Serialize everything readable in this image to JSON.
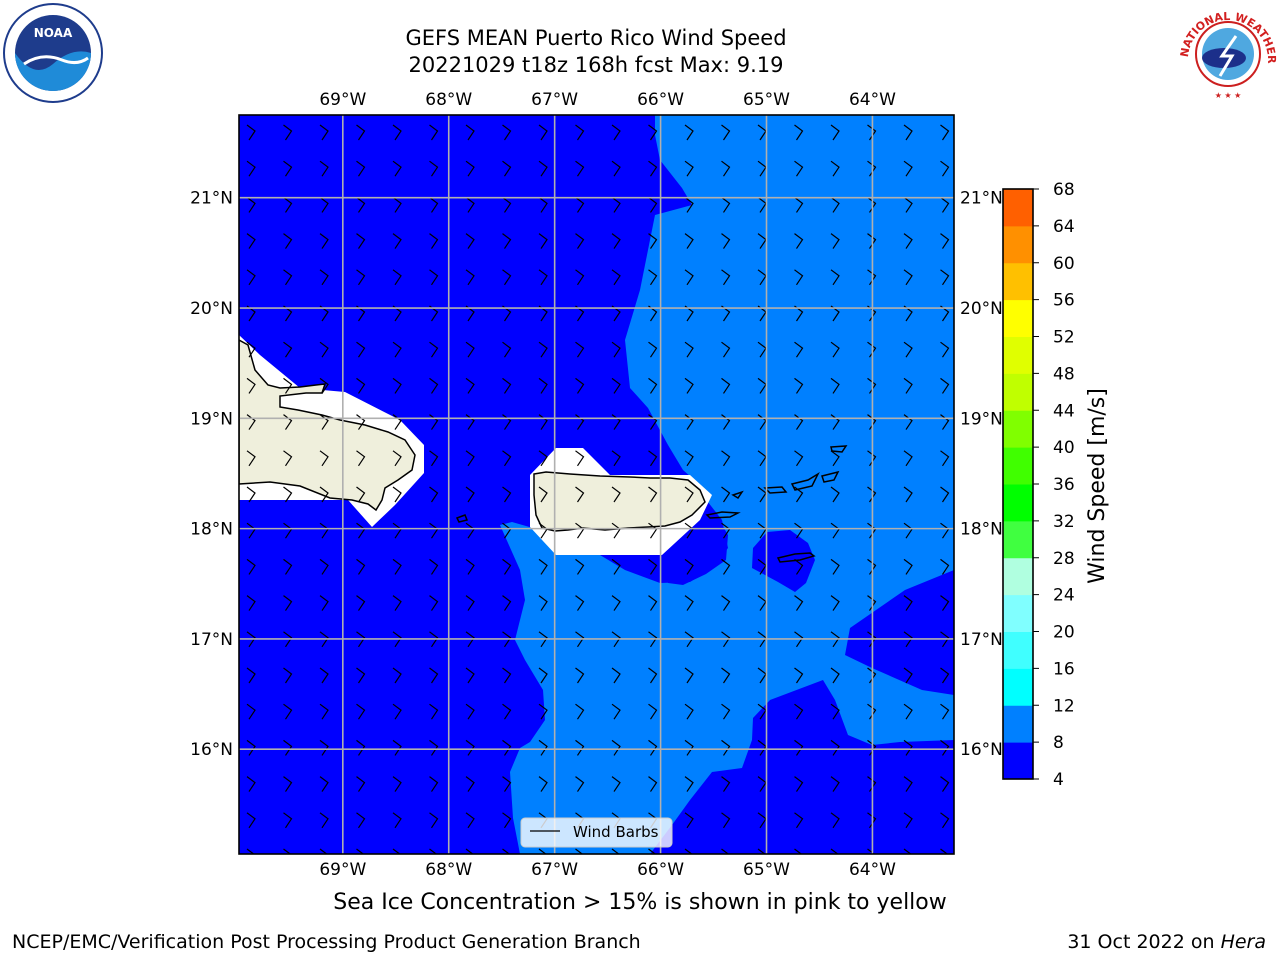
{
  "title": {
    "line1": "GEFS MEAN Puerto Rico Wind Speed",
    "line2": "20221029 t18z 168h fcst   Max: 9.19"
  },
  "map": {
    "lon_labels": [
      "69°W",
      "68°W",
      "67°W",
      "66°W",
      "65°W",
      "64°W"
    ],
    "lat_labels": [
      "21°N",
      "20°N",
      "19°N",
      "18°N",
      "17°N",
      "16°N"
    ],
    "extent": {
      "lon_min": -69.98,
      "lon_max": -63.23,
      "lat_min": 15.05,
      "lat_max": 21.75
    },
    "legend_label": "Wind Barbs",
    "colors": {
      "ocean_4_8": "#0000ff",
      "ocean_8_12": "#0080ff",
      "land": "#efefdc"
    }
  },
  "colorbar": {
    "label": "Wind Speed [m/s]",
    "ticks": [
      "4",
      "8",
      "12",
      "16",
      "20",
      "24",
      "28",
      "32",
      "36",
      "40",
      "44",
      "48",
      "52",
      "56",
      "60",
      "64",
      "68"
    ],
    "colors": [
      "#0000ff",
      "#0080ff",
      "#00ffff",
      "#40ffff",
      "#80ffff",
      "#b0ffe0",
      "#40ff40",
      "#00ff00",
      "#40ff00",
      "#80ff00",
      "#c0ff00",
      "#e0ff00",
      "#ffff00",
      "#ffc000",
      "#ff9000",
      "#ff6000",
      "#ff3000",
      "#ff0000"
    ]
  },
  "caption": "Sea Ice Concentration > 15% is shown in pink to yellow",
  "footer": {
    "left": "NCEP/EMC/Verification Post Processing Product Generation Branch",
    "right_prefix": "31 Oct 2022 on ",
    "right_machine": "Hera"
  },
  "logos": {
    "noaa_text": "NOAA",
    "nws_text": "NATIONAL WEATHER SERVICE"
  }
}
